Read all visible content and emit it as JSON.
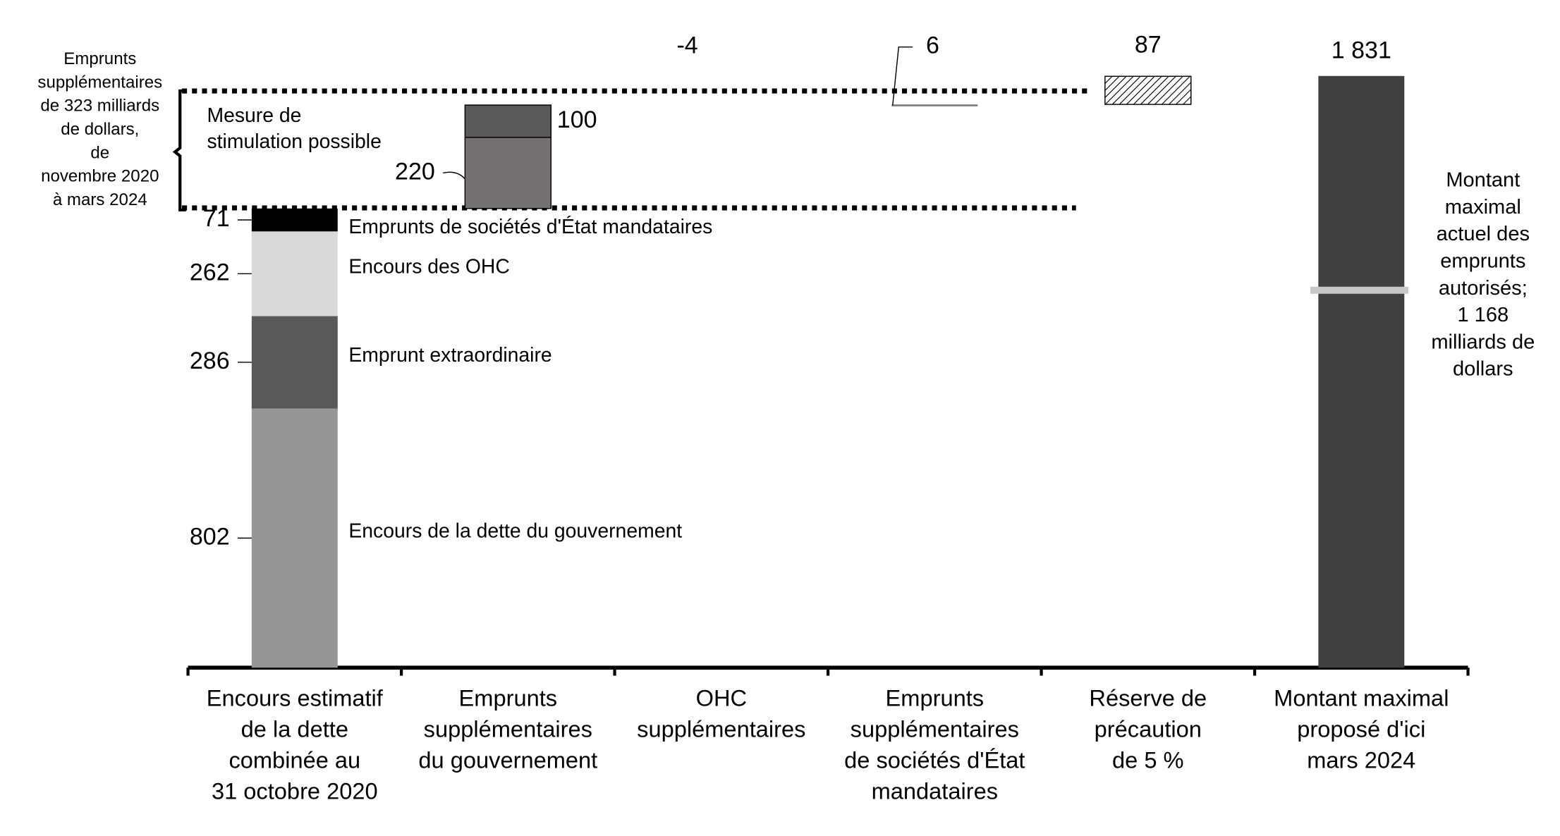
{
  "chart_data": {
    "type": "waterfall",
    "ylim": [
      0,
      1900
    ],
    "steps": [
      {
        "category": "Encours estimatif\nde la dette\ncombinée au\n31 octobre 2020",
        "segments": [
          {
            "name": "Encours de la dette du gouvernement",
            "value": 802,
            "color": "#969696"
          },
          {
            "name": "Emprunt extraordinaire",
            "value": 286,
            "color": "#595959"
          },
          {
            "name": "Encours des OHC",
            "value": 262,
            "color": "#d9d9d9"
          },
          {
            "name": "Emprunts de sociétés d'État mandataires",
            "value": 71,
            "color": "#000000"
          }
        ]
      },
      {
        "category": "Emprunts\nsupplémentaires\ndu gouvernement",
        "segments": [
          {
            "value": 220,
            "color": "#767171"
          },
          {
            "value": 100,
            "color": "#595959"
          }
        ]
      },
      {
        "category": "OHC\nsupplémentaires",
        "segments": [
          {
            "value": -4
          }
        ]
      },
      {
        "category": "Emprunts\nsupplémentaires\nde sociétés d'État\nmandataires",
        "segments": [
          {
            "value": 6,
            "color": "#7f7f7f"
          }
        ]
      },
      {
        "category": "Réserve de\nprécaution\nde 5 %",
        "segments": [
          {
            "value": 87,
            "color": "hatch"
          }
        ]
      },
      {
        "category": "Montant maximal\nproposé d'ici\nmars 2024",
        "total": true,
        "segments": [
          {
            "value": 1831,
            "value_label": "1 831",
            "color": "#404040"
          }
        ]
      }
    ],
    "reference": {
      "value": 1168,
      "color": "#c8c8c8",
      "label": "Montant\nmaximal\nactuel des\nemprunts\nautorisés;\n1 168\nmilliards de\ndollars"
    },
    "annotations": {
      "bracket": "Emprunts\nsupplémentaires\nde 323 milliards\nde dollars,\nde\nnovembre 2020\nà mars 2024",
      "stimulus": "Mesure de\nstimulation possible"
    }
  }
}
